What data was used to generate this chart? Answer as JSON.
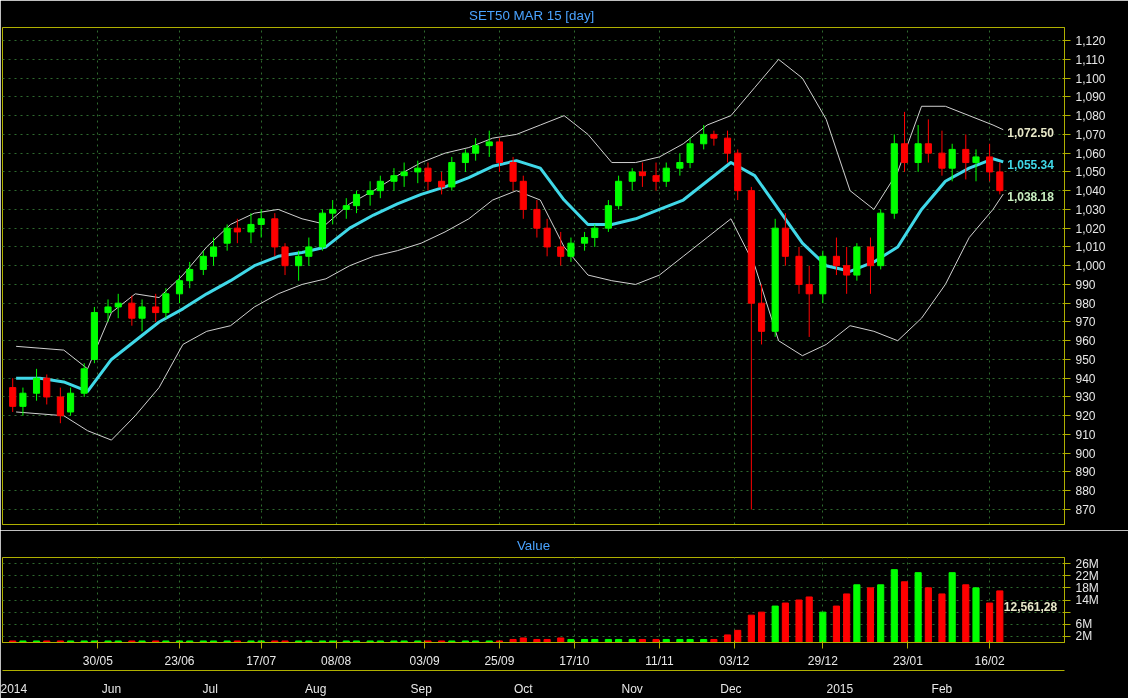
{
  "chart_data": [
    {
      "type": "candlestick",
      "title": "SET50 MAR 15  [day]",
      "tick_labels": "y",
      "grid": true,
      "x": [
        "2014-05-05",
        "2014-05-08",
        "2014-05-12",
        "2014-05-15",
        "2014-05-19",
        "2014-05-22",
        "2014-05-26",
        "2014-05-29",
        "2014-06-02",
        "2014-06-05",
        "2014-06-09",
        "2014-06-12",
        "2014-06-16",
        "2014-06-19",
        "2014-06-23",
        "2014-06-26",
        "2014-06-30",
        "2014-07-03",
        "2014-07-07",
        "2014-07-10",
        "2014-07-14",
        "2014-07-17",
        "2014-07-21",
        "2014-07-24",
        "2014-07-28",
        "2014-07-31",
        "2014-08-04",
        "2014-08-07",
        "2014-08-11",
        "2014-08-14",
        "2014-08-18",
        "2014-08-21",
        "2014-08-25",
        "2014-08-28",
        "2014-09-01",
        "2014-09-04",
        "2014-09-08",
        "2014-09-11",
        "2014-09-15",
        "2014-09-18",
        "2014-09-22",
        "2014-09-25",
        "2014-09-29",
        "2014-10-02",
        "2014-10-06",
        "2014-10-09",
        "2014-10-13",
        "2014-10-16",
        "2014-10-20",
        "2014-10-23",
        "2014-10-27",
        "2014-10-30",
        "2014-11-03",
        "2014-11-06",
        "2014-11-10",
        "2014-11-13",
        "2014-11-17",
        "2014-11-20",
        "2014-11-24",
        "2014-11-27",
        "2014-12-01",
        "2014-12-04",
        "2014-12-08",
        "2014-12-11",
        "2014-12-15",
        "2014-12-18",
        "2014-12-22",
        "2014-12-25",
        "2014-12-29",
        "2015-01-02",
        "2015-01-05",
        "2015-01-08",
        "2015-01-12",
        "2015-01-15",
        "2015-01-19",
        "2015-01-22",
        "2015-01-26",
        "2015-01-29",
        "2015-02-02",
        "2015-02-05",
        "2015-02-09",
        "2015-02-12",
        "2015-02-16",
        "2015-02-19"
      ],
      "ohlc": [
        [
          935,
          940,
          922,
          925
        ],
        [
          925,
          935,
          920,
          932
        ],
        [
          932,
          945,
          928,
          940
        ],
        [
          940,
          942,
          926,
          930
        ],
        [
          930,
          935,
          916,
          920
        ],
        [
          922,
          935,
          920,
          932
        ],
        [
          932,
          948,
          930,
          945
        ],
        [
          950,
          978,
          948,
          975
        ],
        [
          975,
          982,
          970,
          978
        ],
        [
          978,
          985,
          972,
          980
        ],
        [
          980,
          984,
          968,
          972
        ],
        [
          972,
          982,
          965,
          978
        ],
        [
          978,
          985,
          970,
          975
        ],
        [
          975,
          988,
          972,
          985
        ],
        [
          985,
          995,
          980,
          992
        ],
        [
          992,
          1002,
          988,
          998
        ],
        [
          998,
          1008,
          995,
          1005
        ],
        [
          1005,
          1015,
          1000,
          1010
        ],
        [
          1012,
          1022,
          1008,
          1020
        ],
        [
          1020,
          1025,
          1012,
          1018
        ],
        [
          1018,
          1028,
          1012,
          1022
        ],
        [
          1022,
          1030,
          1015,
          1025
        ],
        [
          1025,
          1028,
          1005,
          1010
        ],
        [
          1010,
          1012,
          995,
          1000
        ],
        [
          1000,
          1008,
          992,
          1005
        ],
        [
          1005,
          1015,
          1000,
          1010
        ],
        [
          1010,
          1030,
          1008,
          1028
        ],
        [
          1028,
          1035,
          1022,
          1030
        ],
        [
          1030,
          1036,
          1025,
          1032
        ],
        [
          1032,
          1040,
          1028,
          1038
        ],
        [
          1038,
          1045,
          1032,
          1040
        ],
        [
          1040,
          1048,
          1036,
          1045
        ],
        [
          1045,
          1052,
          1040,
          1048
        ],
        [
          1048,
          1055,
          1042,
          1050
        ],
        [
          1050,
          1056,
          1044,
          1052
        ],
        [
          1052,
          1055,
          1040,
          1045
        ],
        [
          1045,
          1050,
          1038,
          1042
        ],
        [
          1042,
          1058,
          1040,
          1055
        ],
        [
          1055,
          1062,
          1050,
          1060
        ],
        [
          1060,
          1068,
          1056,
          1064
        ],
        [
          1064,
          1072,
          1058,
          1066
        ],
        [
          1066,
          1068,
          1050,
          1055
        ],
        [
          1055,
          1058,
          1040,
          1045
        ],
        [
          1045,
          1048,
          1025,
          1030
        ],
        [
          1030,
          1035,
          1015,
          1020
        ],
        [
          1020,
          1025,
          1005,
          1010
        ],
        [
          1010,
          1018,
          1000,
          1005
        ],
        [
          1005,
          1015,
          1002,
          1012
        ],
        [
          1012,
          1018,
          1008,
          1015
        ],
        [
          1015,
          1022,
          1010,
          1020
        ],
        [
          1020,
          1035,
          1018,
          1032
        ],
        [
          1032,
          1048,
          1030,
          1045
        ],
        [
          1045,
          1052,
          1040,
          1050
        ],
        [
          1050,
          1055,
          1042,
          1048
        ],
        [
          1048,
          1055,
          1040,
          1045
        ],
        [
          1045,
          1055,
          1042,
          1052
        ],
        [
          1052,
          1060,
          1048,
          1055
        ],
        [
          1055,
          1068,
          1052,
          1065
        ],
        [
          1065,
          1075,
          1062,
          1070
        ],
        [
          1070,
          1072,
          1064,
          1068
        ],
        [
          1068,
          1072,
          1055,
          1060
        ],
        [
          1060,
          1062,
          1035,
          1040
        ],
        [
          1040,
          1042,
          870,
          980
        ],
        [
          980,
          990,
          958,
          965
        ],
        [
          965,
          1025,
          962,
          1020
        ],
        [
          1020,
          1028,
          1000,
          1005
        ],
        [
          1005,
          1010,
          985,
          990
        ],
        [
          990,
          1000,
          962,
          985
        ],
        [
          985,
          1008,
          980,
          1005
        ],
        [
          1005,
          1015,
          995,
          1000
        ],
        [
          1000,
          1010,
          985,
          995
        ],
        [
          995,
          1012,
          992,
          1010
        ],
        [
          1010,
          1015,
          985,
          1000
        ],
        [
          1000,
          1030,
          998,
          1028
        ],
        [
          1028,
          1070,
          1025,
          1065
        ],
        [
          1065,
          1082,
          1050,
          1055
        ],
        [
          1055,
          1075,
          1050,
          1065
        ],
        [
          1065,
          1078,
          1055,
          1060
        ],
        [
          1060,
          1072,
          1048,
          1052
        ],
        [
          1052,
          1065,
          1045,
          1062
        ],
        [
          1062,
          1070,
          1046,
          1055
        ],
        [
          1055,
          1062,
          1045,
          1058
        ],
        [
          1058,
          1065,
          1045,
          1050
        ],
        [
          1050,
          1055,
          1038,
          1040
        ]
      ],
      "colors": [
        "#ff0000",
        "#00ff00",
        "#00ff00",
        "#ff0000",
        "#ff0000",
        "#00ff00",
        "#00ff00",
        "#00ff00",
        "#00ff00",
        "#00ff00",
        "#ff0000",
        "#00ff00",
        "#ff0000",
        "#00ff00",
        "#00ff00",
        "#00ff00",
        "#00ff00",
        "#00ff00",
        "#00ff00",
        "#ff0000",
        "#00ff00",
        "#00ff00",
        "#ff0000",
        "#ff0000",
        "#00ff00",
        "#00ff00",
        "#00ff00",
        "#00ff00",
        "#00ff00",
        "#00ff00",
        "#00ff00",
        "#00ff00",
        "#00ff00",
        "#00ff00",
        "#00ff00",
        "#ff0000",
        "#ff0000",
        "#00ff00",
        "#00ff00",
        "#00ff00",
        "#00ff00",
        "#ff0000",
        "#ff0000",
        "#ff0000",
        "#ff0000",
        "#ff0000",
        "#ff0000",
        "#00ff00",
        "#00ff00",
        "#00ff00",
        "#00ff00",
        "#00ff00",
        "#00ff00",
        "#ff0000",
        "#ff0000",
        "#00ff00",
        "#00ff00",
        "#00ff00",
        "#00ff00",
        "#ff0000",
        "#ff0000",
        "#ff0000",
        "#ff0000",
        "#ff0000",
        "#00ff00",
        "#ff0000",
        "#ff0000",
        "#ff0000",
        "#00ff00",
        "#ff0000",
        "#ff0000",
        "#00ff00",
        "#ff0000",
        "#00ff00",
        "#00ff00",
        "#ff0000",
        "#00ff00",
        "#ff0000",
        "#ff0000",
        "#00ff00",
        "#ff0000",
        "#00ff00",
        "#ff0000",
        "#ff0000"
      ],
      "series": [
        {
          "type": "line",
          "color": "#d0d0d0",
          "x": [
            "2014-05-06",
            "2014-05-13",
            "2014-05-20",
            "2014-05-27",
            "2014-06-03",
            "2014-06-10",
            "2014-06-17",
            "2014-06-24",
            "2014-07-01",
            "2014-07-08",
            "2014-07-15",
            "2014-07-22",
            "2014-07-29",
            "2014-08-05",
            "2014-08-12",
            "2014-08-19",
            "2014-08-26",
            "2014-09-02",
            "2014-09-09",
            "2014-09-16",
            "2014-09-23",
            "2014-09-30",
            "2014-10-07",
            "2014-10-14",
            "2014-10-21",
            "2014-10-28",
            "2014-11-04",
            "2014-11-11",
            "2014-11-18",
            "2014-11-25",
            "2014-12-02",
            "2014-12-09",
            "2014-12-16",
            "2014-12-23",
            "2014-12-30",
            "2015-01-06",
            "2015-01-13",
            "2015-01-20",
            "2015-01-27",
            "2015-02-03",
            "2015-02-10",
            "2015-02-17",
            "2015-02-20"
          ],
          "values": [
            957,
            956,
            955,
            945,
            975,
            985,
            983,
            995,
            1010,
            1022,
            1028,
            1030,
            1025,
            1022,
            1033,
            1040,
            1048,
            1055,
            1060,
            1063,
            1068,
            1070,
            1075,
            1080,
            1070,
            1055,
            1055,
            1058,
            1065,
            1075,
            1080,
            1095,
            1110,
            1100,
            1078,
            1040,
            1030,
            1050,
            1085,
            1085,
            1080,
            1075,
            1072.5
          ]
        },
        {
          "type": "line",
          "color": "#d0d0d0",
          "x": [
            "2014-05-06",
            "2014-05-13",
            "2014-05-20",
            "2014-05-27",
            "2014-06-03",
            "2014-06-10",
            "2014-06-17",
            "2014-06-24",
            "2014-07-01",
            "2014-07-08",
            "2014-07-15",
            "2014-07-22",
            "2014-07-29",
            "2014-08-05",
            "2014-08-12",
            "2014-08-19",
            "2014-08-26",
            "2014-09-02",
            "2014-09-09",
            "2014-09-16",
            "2014-09-23",
            "2014-09-30",
            "2014-10-07",
            "2014-10-14",
            "2014-10-21",
            "2014-10-28",
            "2014-11-04",
            "2014-11-11",
            "2014-11-18",
            "2014-11-25",
            "2014-12-02",
            "2014-12-09",
            "2014-12-16",
            "2014-12-23",
            "2014-12-30",
            "2015-01-06",
            "2015-01-13",
            "2015-01-20",
            "2015-01-27",
            "2015-02-03",
            "2015-02-10",
            "2015-02-17",
            "2015-02-20"
          ],
          "values": [
            922,
            921,
            920,
            912,
            907,
            920,
            935,
            958,
            965,
            968,
            978,
            985,
            990,
            993,
            1000,
            1005,
            1008,
            1012,
            1018,
            1025,
            1035,
            1040,
            1035,
            1010,
            995,
            992,
            990,
            995,
            1005,
            1015,
            1025,
            1000,
            960,
            952,
            958,
            968,
            965,
            960,
            972,
            990,
            1015,
            1030,
            1038.18
          ]
        },
        {
          "type": "line",
          "color": "#40d8e8",
          "x": [
            "2014-05-06",
            "2014-05-13",
            "2014-05-20",
            "2014-05-27",
            "2014-06-03",
            "2014-06-10",
            "2014-06-17",
            "2014-06-24",
            "2014-07-01",
            "2014-07-08",
            "2014-07-15",
            "2014-07-22",
            "2014-07-29",
            "2014-08-05",
            "2014-08-12",
            "2014-08-19",
            "2014-08-26",
            "2014-09-02",
            "2014-09-09",
            "2014-09-16",
            "2014-09-23",
            "2014-09-30",
            "2014-10-07",
            "2014-10-14",
            "2014-10-21",
            "2014-10-28",
            "2014-11-04",
            "2014-11-11",
            "2014-11-18",
            "2014-11-25",
            "2014-12-02",
            "2014-12-09",
            "2014-12-16",
            "2014-12-23",
            "2014-12-30",
            "2015-01-06",
            "2015-01-13",
            "2015-01-20",
            "2015-01-27",
            "2015-02-03",
            "2015-02-10",
            "2015-02-17",
            "2015-02-20"
          ],
          "values": [
            940,
            940,
            938,
            933,
            950,
            960,
            970,
            977,
            985,
            992,
            1000,
            1005,
            1007,
            1010,
            1020,
            1027,
            1033,
            1038,
            1042,
            1047,
            1053,
            1056,
            1052,
            1035,
            1022,
            1022,
            1025,
            1030,
            1035,
            1045,
            1055,
            1048,
            1030,
            1012,
            1000,
            997,
            1002,
            1010,
            1030,
            1045,
            1052,
            1057,
            1055.34
          ]
        }
      ],
      "xlim": [
        "2014-05-02",
        "2015-03-10"
      ],
      "ylim": [
        862,
        1127
      ],
      "xticks": [
        "2014-05-30",
        "2014-06-23",
        "2014-07-17",
        "2014-08-08",
        "2014-09-03",
        "2014-09-25",
        "2014-10-17",
        "2014-11-11",
        "2014-12-03",
        "2014-12-29",
        "2015-01-23",
        "2015-02-16"
      ],
      "yticks": [
        870,
        880,
        890,
        900,
        910,
        920,
        930,
        940,
        950,
        960,
        970,
        980,
        990,
        {
          "value": 1000,
          "label": "1,000"
        },
        {
          "value": 1010,
          "label": "1,010"
        },
        {
          "value": 1020,
          "label": "1,020"
        },
        {
          "value": 1030,
          "label": "1,030"
        },
        {
          "value": 1040,
          "label": "1,040"
        },
        {
          "value": 1050,
          "label": "1,050"
        },
        {
          "value": 1060,
          "label": "1,060"
        },
        {
          "value": 1070,
          "label": "1,070"
        },
        {
          "value": 1080,
          "label": "1,080"
        },
        {
          "value": 1090,
          "label": "1,090"
        },
        {
          "value": 1100,
          "label": "1,100"
        },
        {
          "value": 1110,
          "label": "1,110"
        },
        {
          "value": 1120,
          "label": "1,120"
        }
      ],
      "annotations": [
        {
          "text": "1,072.50",
          "x": "2015-02-20",
          "y": 1072.5
        },
        {
          "text": "1,055.34",
          "x": "2015-02-20",
          "y": 1055.34
        },
        {
          "text": "1,038.18",
          "x": "2015-02-20",
          "y": 1038.18
        }
      ]
    },
    {
      "type": "bar",
      "title": "Value",
      "grid": true,
      "x": [
        "2014-05-05",
        "2014-05-08",
        "2014-05-12",
        "2014-05-15",
        "2014-05-19",
        "2014-05-22",
        "2014-05-26",
        "2014-05-29",
        "2014-06-02",
        "2014-06-05",
        "2014-06-09",
        "2014-06-12",
        "2014-06-16",
        "2014-06-19",
        "2014-06-23",
        "2014-06-26",
        "2014-06-30",
        "2014-07-03",
        "2014-07-07",
        "2014-07-10",
        "2014-07-14",
        "2014-07-17",
        "2014-07-21",
        "2014-07-24",
        "2014-07-28",
        "2014-07-31",
        "2014-08-04",
        "2014-08-07",
        "2014-08-11",
        "2014-08-14",
        "2014-08-18",
        "2014-08-21",
        "2014-08-25",
        "2014-08-28",
        "2014-09-01",
        "2014-09-04",
        "2014-09-08",
        "2014-09-11",
        "2014-09-15",
        "2014-09-18",
        "2014-09-22",
        "2014-09-25",
        "2014-09-29",
        "2014-10-02",
        "2014-10-06",
        "2014-10-09",
        "2014-10-13",
        "2014-10-16",
        "2014-10-20",
        "2014-10-23",
        "2014-10-27",
        "2014-10-30",
        "2014-11-03",
        "2014-11-06",
        "2014-11-10",
        "2014-11-13",
        "2014-11-17",
        "2014-11-20",
        "2014-11-24",
        "2014-11-27",
        "2014-12-01",
        "2014-12-04",
        "2014-12-08",
        "2014-12-11",
        "2014-12-15",
        "2014-12-18",
        "2014-12-22",
        "2014-12-25",
        "2014-12-29",
        "2015-01-02",
        "2015-01-05",
        "2015-01-08",
        "2015-01-12",
        "2015-01-15",
        "2015-01-19",
        "2015-01-22",
        "2015-01-26",
        "2015-01-29",
        "2015-02-02",
        "2015-02-05",
        "2015-02-09",
        "2015-02-12",
        "2015-02-16",
        "2015-02-19"
      ],
      "values": [
        0.5,
        0.5,
        0.5,
        0.5,
        0.5,
        0.5,
        0.5,
        0.5,
        0.5,
        0.5,
        0.5,
        0.5,
        0.5,
        0.5,
        0.5,
        0.5,
        0.5,
        0.5,
        0.5,
        0.5,
        0.5,
        0.5,
        0.5,
        0.5,
        0.5,
        0.5,
        0.5,
        0.5,
        0.5,
        0.5,
        0.5,
        0.5,
        0.5,
        0.5,
        0.5,
        0.5,
        0.5,
        0.5,
        0.5,
        0.5,
        0.5,
        0.5,
        1,
        1.5,
        1,
        1,
        1.5,
        1,
        1,
        1,
        1,
        1,
        1,
        1,
        1,
        1,
        1,
        1,
        1,
        1,
        2.5,
        4,
        9,
        10,
        12,
        13,
        14,
        15,
        10,
        12,
        16,
        19,
        18,
        19,
        24,
        20,
        23,
        18,
        16,
        23,
        19,
        18,
        13,
        17
      ],
      "colors": [
        "#ff0000",
        "#00ff00",
        "#00ff00",
        "#ff0000",
        "#ff0000",
        "#00ff00",
        "#00ff00",
        "#00ff00",
        "#00ff00",
        "#00ff00",
        "#ff0000",
        "#00ff00",
        "#ff0000",
        "#00ff00",
        "#00ff00",
        "#00ff00",
        "#00ff00",
        "#00ff00",
        "#00ff00",
        "#ff0000",
        "#00ff00",
        "#00ff00",
        "#ff0000",
        "#ff0000",
        "#00ff00",
        "#00ff00",
        "#00ff00",
        "#00ff00",
        "#00ff00",
        "#00ff00",
        "#00ff00",
        "#00ff00",
        "#00ff00",
        "#00ff00",
        "#00ff00",
        "#ff0000",
        "#ff0000",
        "#00ff00",
        "#00ff00",
        "#00ff00",
        "#00ff00",
        "#ff0000",
        "#ff0000",
        "#ff0000",
        "#ff0000",
        "#ff0000",
        "#ff0000",
        "#00ff00",
        "#00ff00",
        "#00ff00",
        "#00ff00",
        "#00ff00",
        "#00ff00",
        "#ff0000",
        "#ff0000",
        "#00ff00",
        "#00ff00",
        "#00ff00",
        "#00ff00",
        "#ff0000",
        "#ff0000",
        "#ff0000",
        "#ff0000",
        "#ff0000",
        "#00ff00",
        "#ff0000",
        "#ff0000",
        "#ff0000",
        "#00ff00",
        "#ff0000",
        "#ff0000",
        "#00ff00",
        "#ff0000",
        "#00ff00",
        "#00ff00",
        "#ff0000",
        "#00ff00",
        "#ff0000",
        "#ff0000",
        "#00ff00",
        "#ff0000",
        "#00ff00",
        "#ff0000",
        "#ff0000"
      ],
      "xlim": [
        "2014-05-02",
        "2015-03-10"
      ],
      "ylim": [
        0,
        28
      ],
      "xticks": [
        {
          "value": "2014-05-30",
          "label": "30/05"
        },
        {
          "value": "2014-06-23",
          "label": "23/06"
        },
        {
          "value": "2014-07-17",
          "label": "17/07"
        },
        {
          "value": "2014-08-08",
          "label": "08/08"
        },
        {
          "value": "2014-09-03",
          "label": "03/09"
        },
        {
          "value": "2014-09-25",
          "label": "25/09"
        },
        {
          "value": "2014-10-17",
          "label": "17/10"
        },
        {
          "value": "2014-11-11",
          "label": "11/11"
        },
        {
          "value": "2014-12-03",
          "label": "03/12"
        },
        {
          "value": "2014-12-29",
          "label": "29/12"
        },
        {
          "value": "2015-01-23",
          "label": "23/01"
        },
        {
          "value": "2015-02-16",
          "label": "16/02"
        }
      ],
      "x2lim": [
        "2014-05-02",
        "2015-03-10"
      ],
      "x2ticks": [
        {
          "value": "2014-05-04",
          "label": "2014"
        },
        {
          "value": "2014-06-03",
          "label": "Jun"
        },
        {
          "value": "2014-07-02",
          "label": "Jul"
        },
        {
          "value": "2014-08-02",
          "label": "Aug"
        },
        {
          "value": "2014-09-02",
          "label": "Sep"
        },
        {
          "value": "2014-10-02",
          "label": "Oct"
        },
        {
          "value": "2014-11-03",
          "label": "Nov"
        },
        {
          "value": "2014-12-02",
          "label": "Dec"
        },
        {
          "value": "2015-01-03",
          "label": "2015"
        },
        {
          "value": "2015-02-02",
          "label": "Feb"
        }
      ],
      "yticks": [
        {
          "value": 2,
          "label": "2M"
        },
        {
          "value": 6,
          "label": "6M"
        },
        {
          "value": 10,
          "label": null
        },
        {
          "value": 14,
          "label": "14M"
        },
        {
          "value": 18,
          "label": "18M"
        },
        {
          "value": 22,
          "label": "22M"
        },
        {
          "value": 26,
          "label": "26M"
        }
      ],
      "annotations": [
        {
          "text": "12,561,28",
          "x": "2015-02-19",
          "y": 12.56
        }
      ]
    }
  ]
}
